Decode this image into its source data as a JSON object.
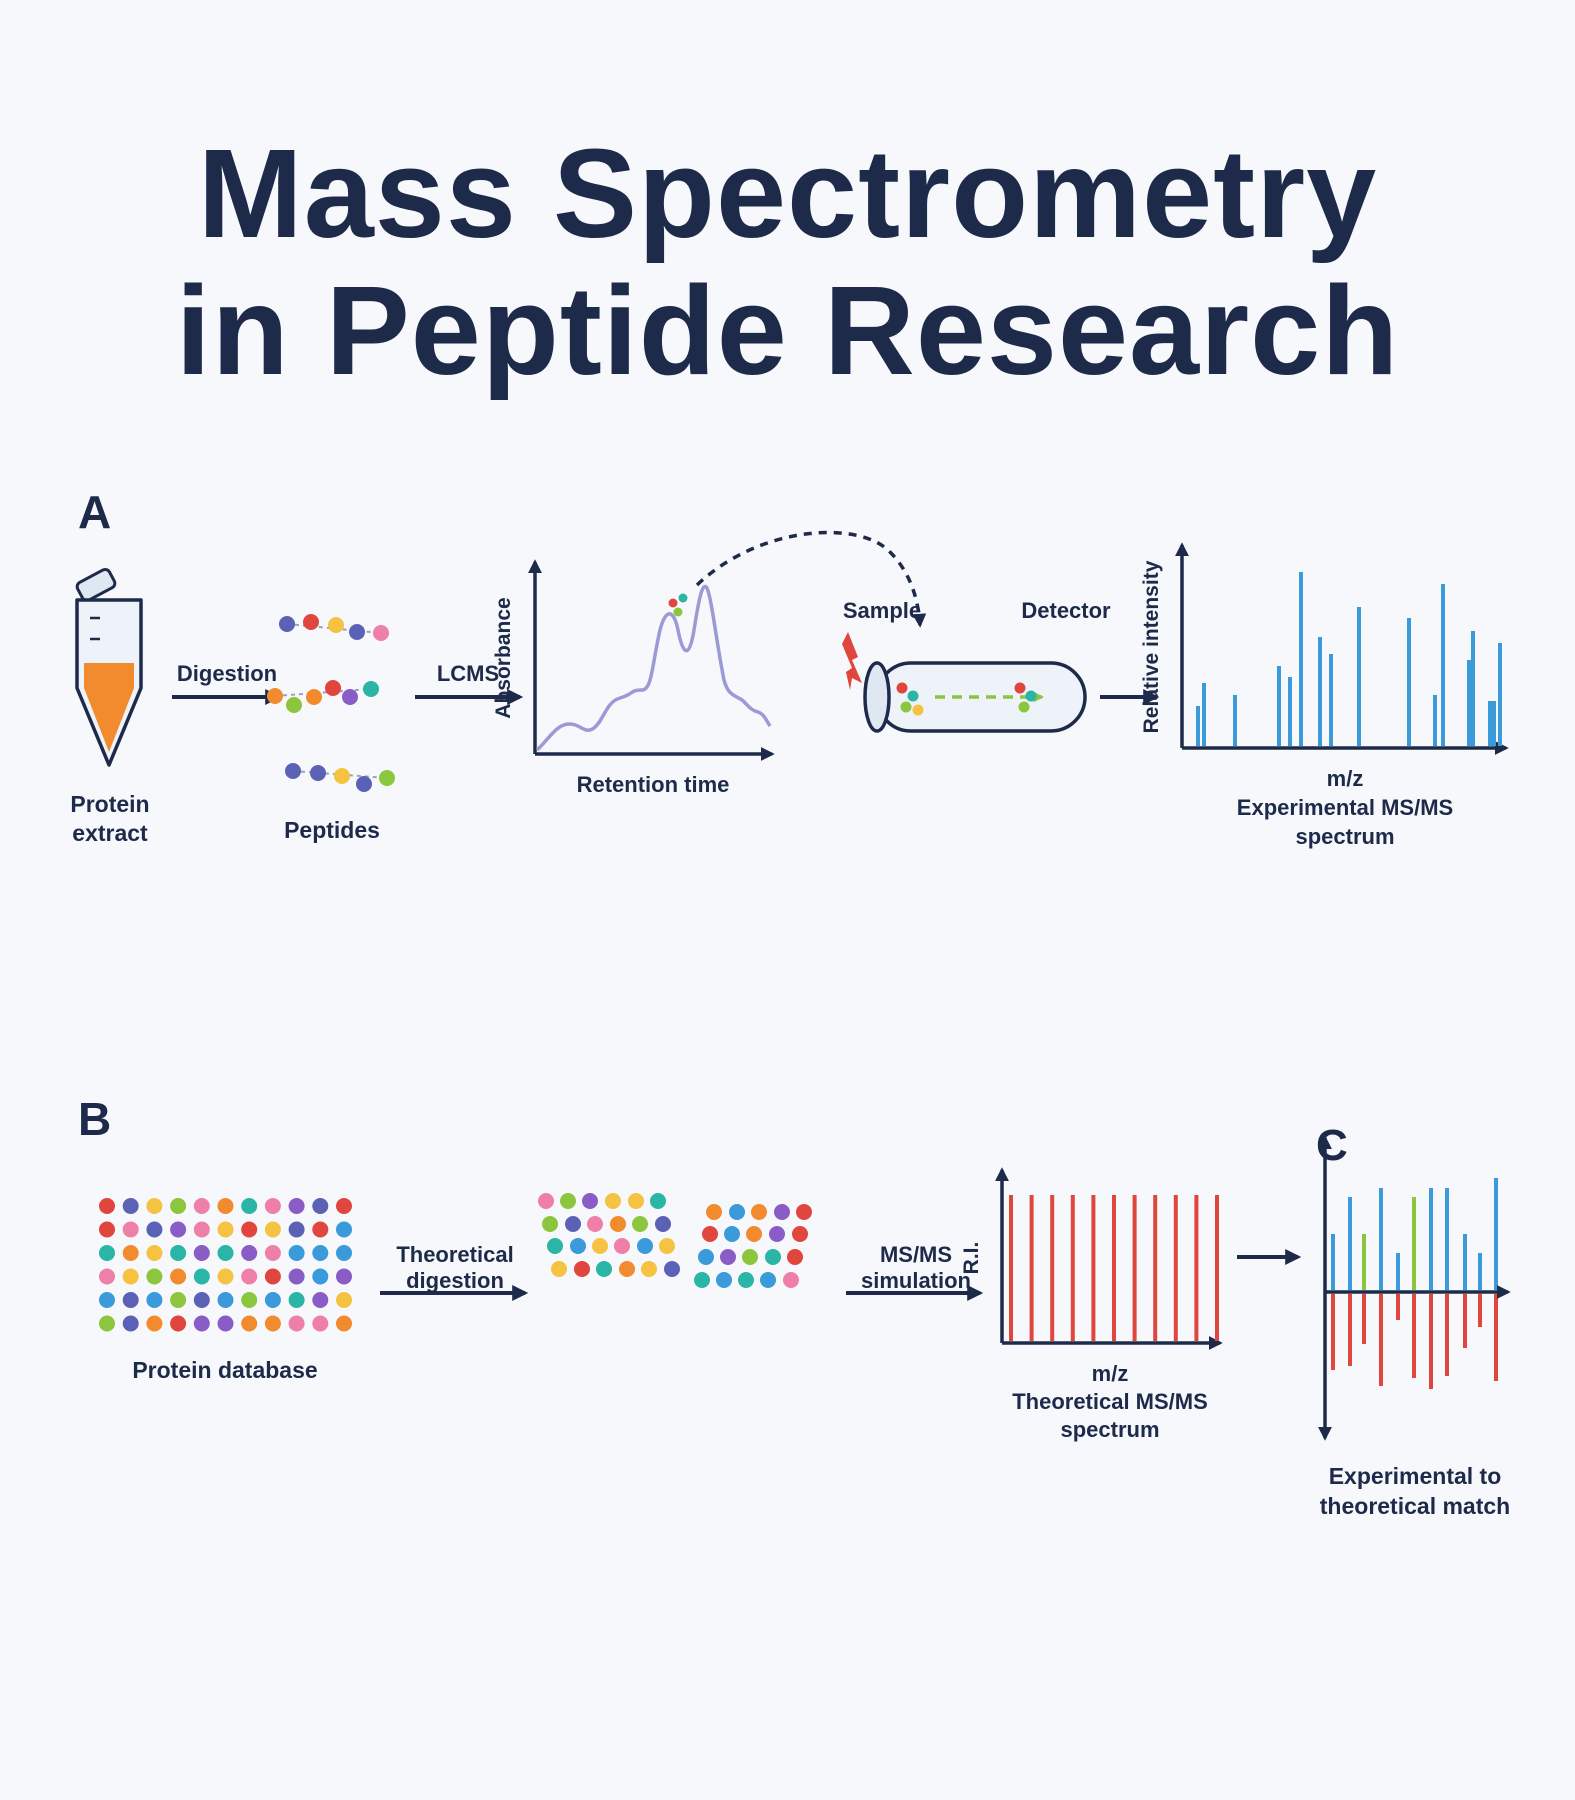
{
  "title": {
    "line1": "Mass Spectrometry",
    "line2": "in Peptide Research"
  },
  "panel_a": {
    "letter": "A",
    "tube_label_1": "Protein",
    "tube_label_2": "extract",
    "digestion_label": "Digestion",
    "peptides_label": "Peptides",
    "lcms_label": "LCMS",
    "chromatogram_ylabel": "Absorbance",
    "chromatogram_xlabel": "Retention time",
    "sample_label": "Sample",
    "detector_label": "Detector",
    "spectrum_ylabel": "Relative intensity",
    "spectrum_xlabel": "m/z",
    "spectrum_caption_1": "Experimental MS/MS",
    "spectrum_caption_2": "spectrum"
  },
  "panel_b": {
    "letter": "B",
    "database_label": "Protein database",
    "theoretical_label_1": "Theoretical",
    "theoretical_label_2": "digestion",
    "simulation_label_1": "MS/MS",
    "simulation_label_2": "simulation",
    "theoretical_ylabel": "R.I.",
    "theoretical_xlabel": "m/z",
    "theoretical_caption_1": "Theoretical MS/MS",
    "theoretical_caption_2": "spectrum"
  },
  "panel_c": {
    "letter": "C",
    "caption_1": "Experimental to",
    "caption_2": "theoretical match"
  },
  "colors": {
    "navy": "#1e2a4a",
    "experimental_peaks": "#3b9ad9",
    "theoretical_peaks": "#e0453e",
    "matched_peaks": "#8cc63f",
    "tube_liquid": "#f28b2e",
    "chromatogram_line": "#9a9ad6",
    "lightning": "#e0453e"
  }
}
